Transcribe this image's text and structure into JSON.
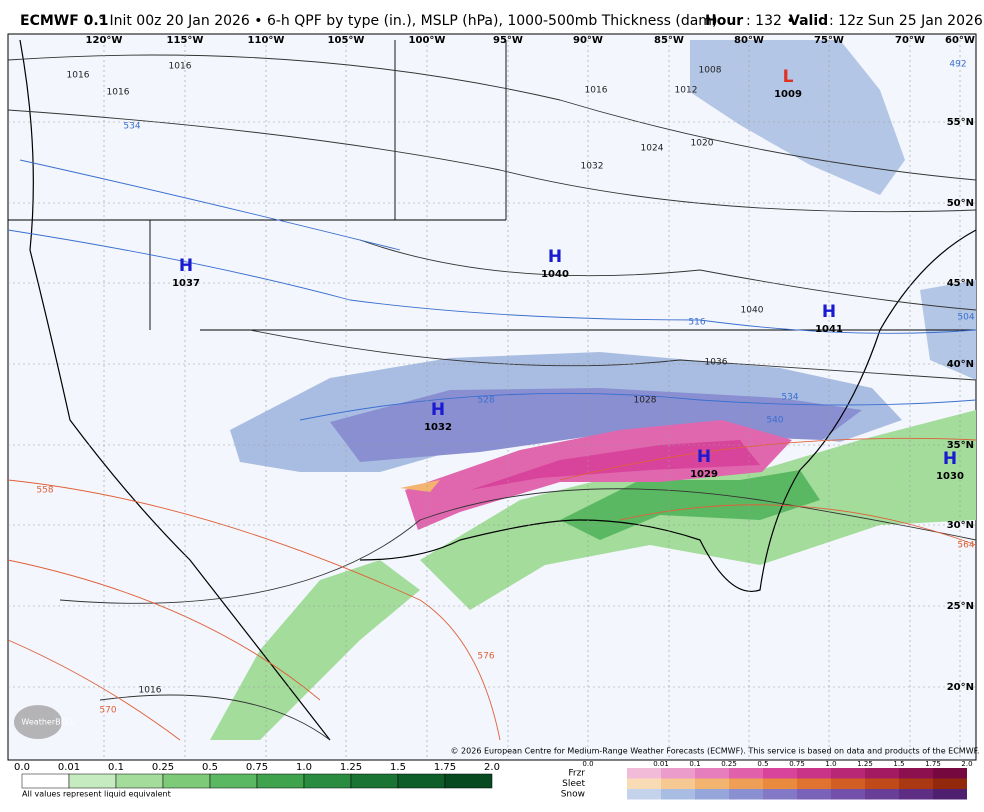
{
  "header": {
    "model": "ECMWF 0.1",
    "title": "° Init 00z 20 Jan 2026 • 6-h QPF by type (in.), MSLP (hPa), 1000-500mb Thickness (dam)",
    "hour_label": "Hour",
    "hour_value": ": 132 •",
    "valid_label": "Valid",
    "valid_value": ": 12z Sun 25 Jan 2026"
  },
  "map": {
    "longitudes": [
      "120°W",
      "115°W",
      "110°W",
      "105°W",
      "100°W",
      "95°W",
      "90°W",
      "85°W",
      "80°W",
      "75°W",
      "70°W",
      "60°W"
    ],
    "latitudes": [
      "55°N",
      "50°N",
      "45°N",
      "40°N",
      "35°N",
      "30°N",
      "25°N",
      "20°N"
    ],
    "centers": [
      {
        "type": "L",
        "value": "1009"
      },
      {
        "type": "H",
        "value": "1037"
      },
      {
        "type": "H",
        "value": "1040"
      },
      {
        "type": "H",
        "value": "1041"
      },
      {
        "type": "H",
        "value": "1032"
      },
      {
        "type": "H",
        "value": "1029"
      },
      {
        "type": "H",
        "value": "1030"
      }
    ],
    "pressure_labels": [
      "1016",
      "1016",
      "1016",
      "1008",
      "1012",
      "1016",
      "1020",
      "1024",
      "1032",
      "1028",
      "1036",
      "1040",
      "1016"
    ],
    "thickness_labels": [
      "534",
      "516",
      "528",
      "534",
      "540",
      "558",
      "564",
      "570",
      "576",
      "504",
      "492"
    ],
    "copyright": "© 2026 European Centre for Medium-Range Weather Forecasts (ECMWF). This service is based on data and products of the ECMWF.",
    "logo": "WeatherBELL"
  },
  "legend": {
    "labels": [
      "0.0",
      "0.01",
      "0.1",
      "0.25",
      "0.5",
      "0.75",
      "1.0",
      "1.25",
      "1.5",
      "1.75",
      "2.0"
    ],
    "rain_colors": [
      "#ffffff",
      "#c7ebc0",
      "#a3dc9b",
      "#7dcb78",
      "#5bb862",
      "#3fa34e",
      "#2a8c40",
      "#1a7535",
      "#0e5e2a",
      "#074a20"
    ],
    "types": [
      {
        "name": "Frzr",
        "colors": [
          "#f2bcd9",
          "#ec9ccb",
          "#e67dbd",
          "#e060ac",
          "#d8449b",
          "#c93388",
          "#b82676",
          "#a31a63",
          "#8c1050",
          "#75083f"
        ]
      },
      {
        "name": "Sleet",
        "colors": [
          "#f9dcb5",
          "#f6c892",
          "#f3b470",
          "#ef9f55",
          "#ea8a3f",
          "#e0732f",
          "#d25e24",
          "#c04a1a",
          "#aa3812",
          "#92280c"
        ]
      },
      {
        "name": "Snow",
        "colors": [
          "#c4d2ec",
          "#a9bde2",
          "#97a6da",
          "#8a8fd1",
          "#8278c6",
          "#7b62b9",
          "#7350a9",
          "#693e97",
          "#5d2e84",
          "#4f2070"
        ]
      }
    ],
    "note": "All values represent liquid equivalent"
  }
}
